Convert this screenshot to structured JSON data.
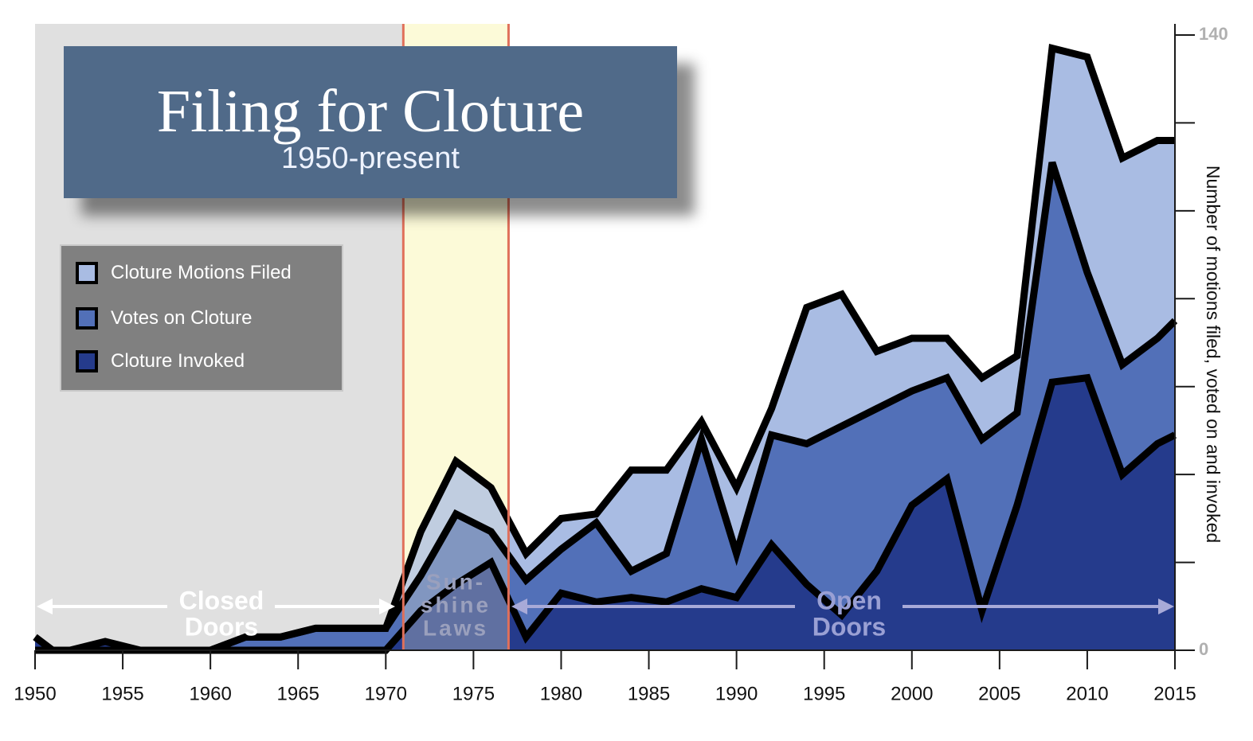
{
  "title": {
    "main": "Filing for Cloture",
    "subtitle": "1950-present"
  },
  "legend": {
    "items": [
      {
        "label": "Cloture Motions Filed",
        "color": "#a9bce3"
      },
      {
        "label": "Votes on Cloture",
        "color": "#5270b8"
      },
      {
        "label": "Cloture Invoked",
        "color": "#253b8c"
      }
    ]
  },
  "eras": [
    {
      "label_lines": [
        "Closed",
        "Doors"
      ],
      "start": 1950,
      "end": 1971,
      "background": "#e0e0e0",
      "label_color": "#ffffff"
    },
    {
      "label_lines": [
        "Sun-",
        "shine",
        "Laws"
      ],
      "start": 1971,
      "end": 1977,
      "background": "#fdfad9",
      "label_color": "#9aa0bd"
    },
    {
      "label_lines": [
        "Open",
        "Doors"
      ],
      "start": 1977,
      "end": 2015,
      "background": "#ffffff",
      "label_color": "#9aa0d4"
    }
  ],
  "chart_data": {
    "type": "area",
    "x": [
      1950,
      1951,
      1952,
      1954,
      1956,
      1958,
      1960,
      1962,
      1964,
      1966,
      1968,
      1970,
      1972,
      1974,
      1976,
      1978,
      1980,
      1982,
      1984,
      1986,
      1988,
      1990,
      1992,
      1994,
      1996,
      1998,
      2000,
      2002,
      2004,
      2006,
      2008,
      2010,
      2012,
      2014,
      2015
    ],
    "series": [
      {
        "name": "Cloture Motions Filed",
        "values": [
          0,
          0,
          0,
          0,
          0,
          0,
          0,
          3,
          3,
          5,
          5,
          5,
          27,
          43,
          37,
          22,
          30,
          31,
          41,
          41,
          52,
          37,
          55,
          78,
          81,
          68,
          71,
          71,
          62,
          67,
          137,
          135,
          112,
          116,
          116
        ]
      },
      {
        "name": "Votes on Cloture",
        "values": [
          0,
          0,
          0,
          0,
          0,
          0,
          0,
          3,
          3,
          5,
          5,
          5,
          17,
          31,
          27,
          16,
          23,
          29,
          18,
          22,
          48,
          22,
          49,
          47,
          51,
          55,
          59,
          62,
          48,
          54,
          111,
          86,
          65,
          71,
          75
        ]
      },
      {
        "name": "Cloture Invoked",
        "values": [
          3,
          0,
          0,
          2,
          0,
          0,
          0,
          0,
          0,
          0,
          0,
          0,
          9,
          15,
          20,
          3,
          13,
          11,
          12,
          11,
          14,
          12,
          24,
          15,
          8,
          18,
          33,
          39,
          9,
          33,
          61,
          62,
          40,
          47,
          49
        ]
      }
    ],
    "xlim": [
      1950,
      2015
    ],
    "ylim": [
      0,
      140
    ],
    "x_ticks": [
      1950,
      1955,
      1960,
      1965,
      1970,
      1975,
      1980,
      1985,
      1990,
      1995,
      2000,
      2005,
      2010,
      2015
    ],
    "y_ticks": [
      0,
      140
    ],
    "ylabel": "Number of motions filed, voted on and invoked",
    "xlabel": "",
    "legend_position": "top-left",
    "grid": false
  },
  "colors": {
    "outline": "#000000",
    "era_boundary": "#e0705a",
    "axis": "#1a1a1a",
    "y_tick_label": "#b0b0b0"
  }
}
